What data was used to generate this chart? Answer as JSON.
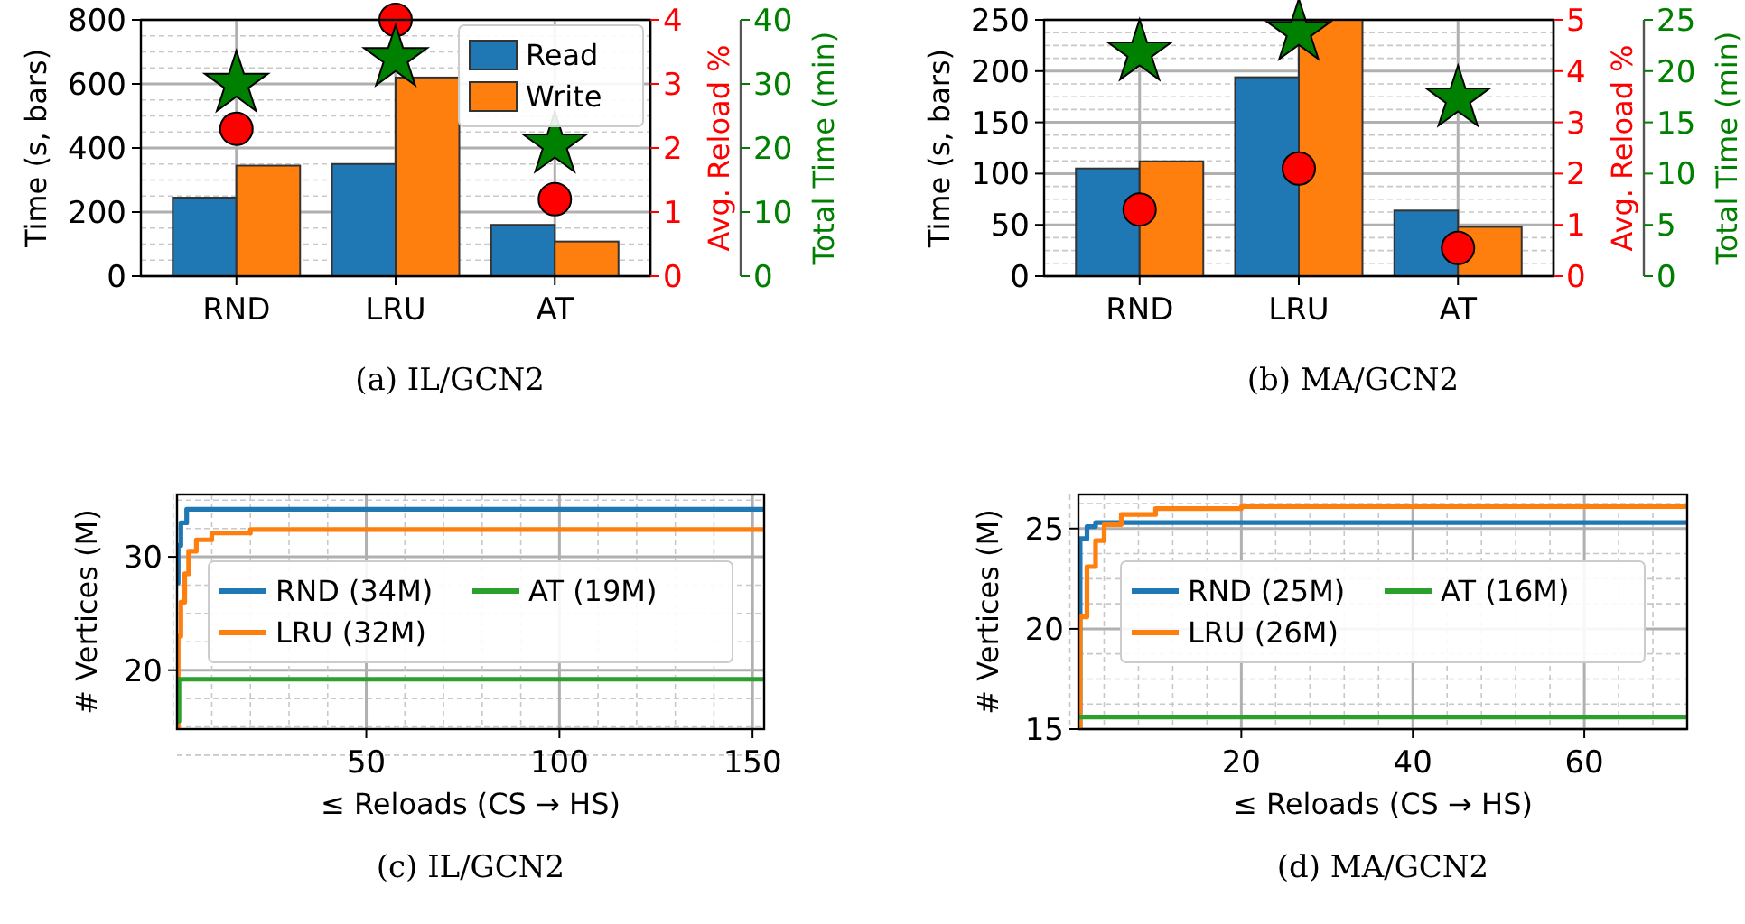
{
  "chart_data": [
    {
      "type": "bar",
      "title": "(a) IL/GCN2",
      "ylabel": "Time (s, bars)",
      "y2label": "Avg. Reload %",
      "y3label": "Total Time (min)",
      "categories": [
        "RND",
        "LRU",
        "AT"
      ],
      "ylim": [
        0,
        800
      ],
      "yticks": [
        0,
        200,
        400,
        600,
        800
      ],
      "y2lim": [
        0,
        4
      ],
      "y2ticks": [
        0,
        1,
        2,
        3,
        4
      ],
      "y3lim": [
        0,
        40
      ],
      "y3ticks": [
        0,
        10,
        20,
        30,
        40
      ],
      "grid": true,
      "legend": "top right",
      "series": [
        {
          "name": "Read",
          "color": "#1f77b4",
          "values": [
            245,
            350,
            160
          ]
        },
        {
          "name": "Write",
          "color": "#ff7f0e",
          "values": [
            345,
            620,
            108
          ]
        },
        {
          "type": "scatter",
          "axis": "y2",
          "marker": "circle",
          "color": "#ff0000",
          "x": [
            "RND",
            "LRU",
            "AT"
          ],
          "values": [
            2.3,
            4.0,
            1.2
          ]
        },
        {
          "type": "scatter",
          "axis": "y3",
          "marker": "star",
          "color": "#008000",
          "x": [
            "RND",
            "LRU",
            "AT"
          ],
          "values": [
            30,
            34,
            20.5
          ]
        }
      ]
    },
    {
      "type": "bar",
      "title": "(b) MA/GCN2",
      "ylabel": "Time (s, bars)",
      "y2label": "Avg. Reload %",
      "y3label": "Total Time (min)",
      "categories": [
        "RND",
        "LRU",
        "AT"
      ],
      "ylim": [
        0,
        250
      ],
      "yticks": [
        0,
        50,
        100,
        150,
        200,
        250
      ],
      "y2lim": [
        0,
        5
      ],
      "y2ticks": [
        0,
        1,
        2,
        3,
        4,
        5
      ],
      "y3lim": [
        0,
        25
      ],
      "y3ticks": [
        0,
        5,
        10,
        15,
        20,
        25
      ],
      "grid": true,
      "series": [
        {
          "color": "#1f77b4",
          "values": [
            105,
            194,
            64
          ]
        },
        {
          "color": "#ff7f0e",
          "values": [
            112,
            250,
            48
          ]
        },
        {
          "type": "scatter",
          "axis": "y2",
          "marker": "circle",
          "color": "#ff0000",
          "x": [
            "RND",
            "LRU",
            "AT"
          ],
          "values": [
            1.3,
            2.1,
            0.55
          ]
        },
        {
          "type": "scatter",
          "axis": "y3",
          "marker": "star",
          "color": "#008000",
          "x": [
            "RND",
            "LRU",
            "AT"
          ],
          "values": [
            21.8,
            23.8,
            17.3
          ]
        }
      ]
    },
    {
      "type": "step",
      "title": "(c) IL/GCN2",
      "ylabel": "# Vertices (M)",
      "xlabel": "≤ Reloads (CS → HS)",
      "xlim": [
        1,
        153
      ],
      "xticks": [
        50,
        100,
        150
      ],
      "ylim": [
        14.8,
        35.5
      ],
      "yticks": [
        20,
        30
      ],
      "grid": true,
      "legend": "center",
      "series": [
        {
          "name": "RND (34M)",
          "color": "#1f77b4",
          "x": [
            1,
            1.3,
            2,
            3.5,
            153
          ],
          "values": [
            27.7,
            31,
            33,
            34.2,
            34.2
          ]
        },
        {
          "name": "LRU (32M)",
          "color": "#ff7f0e",
          "x": [
            1,
            1.3,
            2,
            3,
            4,
            6,
            10,
            20,
            153
          ],
          "values": [
            15,
            23,
            26,
            28.5,
            30.5,
            31.5,
            32.1,
            32.4,
            32.4
          ]
        },
        {
          "name": "AT (19M)",
          "color": "#2ca02c",
          "x": [
            1,
            1.5,
            153
          ],
          "values": [
            15.5,
            19.2,
            19.2
          ]
        }
      ]
    },
    {
      "type": "step",
      "title": "(d) MA/GCN2",
      "ylabel": "# Vertices (M)",
      "xlabel": "≤ Reloads (CS → HS)",
      "xlim": [
        1,
        72
      ],
      "xticks": [
        20,
        40,
        60
      ],
      "ylim": [
        15,
        26.7
      ],
      "yticks": [
        15,
        20,
        25
      ],
      "grid": true,
      "legend": "center",
      "series": [
        {
          "name": "RND (25M)",
          "color": "#1f77b4",
          "x": [
            1,
            1.2,
            2,
            3,
            72
          ],
          "values": [
            15,
            24.5,
            25.1,
            25.3,
            25.3
          ]
        },
        {
          "name": "LRU (26M)",
          "color": "#ff7f0e",
          "x": [
            1,
            1.2,
            2,
            3,
            4,
            6,
            10,
            20,
            72
          ],
          "values": [
            15,
            20.6,
            23.1,
            24.4,
            25.2,
            25.7,
            26.0,
            26.1,
            26.1
          ]
        },
        {
          "name": "AT (16M)",
          "color": "#2ca02c",
          "x": [
            1,
            72
          ],
          "values": [
            15.6,
            15.6
          ]
        }
      ]
    }
  ]
}
